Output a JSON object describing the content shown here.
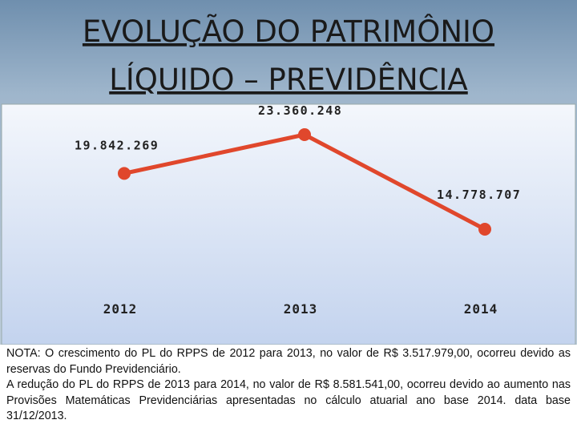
{
  "chart_data": {
    "type": "line",
    "title_lines": [
      "EVOLUÇÃO DO PATRIMÔNIO",
      "LÍQUIDO – PREVIDÊNCIA"
    ],
    "categories": [
      "2012",
      "2013",
      "2014"
    ],
    "values": [
      19842269,
      23360248,
      14778707
    ],
    "value_labels": [
      "19.842.269",
      "23.360.248",
      "14.778.707"
    ],
    "color": "#e0472c"
  },
  "notes": [
    "NOTA: O crescimento do PL do RPPS de 2012 para 2013,  no valor de R$ 3.517.979,00,  ocorreu devido as reservas do Fundo Previdenciário.",
    "A redução  do PL do RPPS de 2013 para 2014,  no valor de R$ 8.581.541,00,  ocorreu devido ao aumento nas Provisões Matemáticas Previdenciárias apresentadas no cálculo atuarial ano base 2014. data base 31/12/2013."
  ]
}
